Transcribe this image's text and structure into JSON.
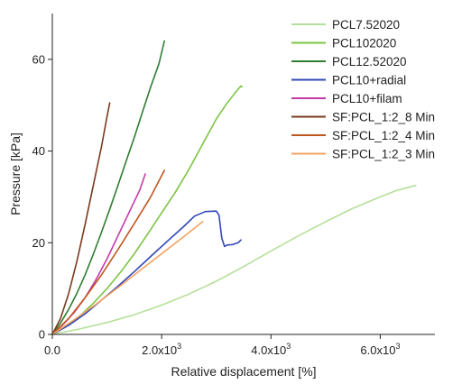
{
  "chart_data": {
    "type": "line",
    "xlabel": "Relative displacement [%]",
    "ylabel": "Pressure [kPa]",
    "xlim": [
      0,
      7000
    ],
    "ylim": [
      0,
      70
    ],
    "x_ticks": [
      0,
      2000,
      4000,
      6000
    ],
    "x_tick_labels": [
      {
        "base": "0.0",
        "exp": ""
      },
      {
        "base": "2.0x10",
        "exp": "3"
      },
      {
        "base": "4.0x10",
        "exp": "3"
      },
      {
        "base": "6.0x10",
        "exp": "3"
      }
    ],
    "y_ticks": [
      0,
      20,
      40,
      60
    ],
    "y_tick_labels": [
      "0",
      "20",
      "40",
      "60"
    ],
    "grid": false,
    "legend_position": "top-right",
    "series": [
      {
        "name": "PCL7.52020",
        "color": "#b5e09a",
        "x": [
          0,
          500,
          1000,
          1500,
          2000,
          2500,
          3000,
          3500,
          4000,
          4500,
          5000,
          5500,
          6000,
          6300,
          6650
        ],
        "y": [
          0,
          1.2,
          2.6,
          4.3,
          6.4,
          8.8,
          11.6,
          14.8,
          18.2,
          21.5,
          24.6,
          27.5,
          30.0,
          31.4,
          32.5
        ]
      },
      {
        "name": "PCL102020",
        "color": "#7cc443",
        "x": [
          0,
          250,
          500,
          750,
          1000,
          1250,
          1500,
          1750,
          2000,
          2250,
          2500,
          2750,
          3000,
          3200,
          3350,
          3450,
          3470
        ],
        "y": [
          0,
          1.8,
          4.0,
          6.8,
          10.0,
          13.6,
          17.6,
          22.0,
          26.5,
          31.0,
          36.0,
          41.5,
          47.0,
          50.5,
          52.8,
          54.2,
          54.0
        ]
      },
      {
        "name": "PCL12.52020",
        "color": "#2e7d32",
        "x": [
          0,
          150,
          300,
          450,
          600,
          750,
          900,
          1050,
          1200,
          1350,
          1500,
          1650,
          1800,
          1950,
          2050
        ],
        "y": [
          0,
          2.5,
          5.5,
          9.0,
          13.0,
          17.5,
          22.3,
          27.3,
          32.5,
          37.8,
          43.0,
          48.5,
          54.0,
          59.0,
          64.0
        ]
      },
      {
        "name": "PCL10+radial",
        "color": "#2f46b4",
        "x": [
          0,
          300,
          600,
          900,
          1200,
          1500,
          1800,
          2100,
          2400,
          2600,
          2800,
          3000,
          3050,
          3100,
          3150,
          3200,
          3300,
          3400,
          3450
        ],
        "y": [
          0,
          2.0,
          4.5,
          7.5,
          10.5,
          13.7,
          17.0,
          20.3,
          23.5,
          25.8,
          26.8,
          26.9,
          26.0,
          21.0,
          19.2,
          19.5,
          19.6,
          20.0,
          20.6
        ]
      },
      {
        "name": "PCL10+filam",
        "color": "#c43aa8",
        "x": [
          0,
          200,
          400,
          600,
          800,
          1000,
          1200,
          1400,
          1600,
          1700
        ],
        "y": [
          0,
          2.2,
          4.8,
          8.0,
          12.0,
          16.5,
          21.5,
          26.5,
          31.5,
          35.0
        ]
      },
      {
        "name": "SF:PCL_1:2_8 Min",
        "color": "#7a3a1e",
        "x": [
          0,
          150,
          300,
          450,
          600,
          750,
          900,
          1000,
          1050
        ],
        "y": [
          0,
          3.5,
          9.0,
          16.0,
          24.0,
          32.5,
          41.0,
          47.5,
          50.5
        ]
      },
      {
        "name": "SF:PCL_1:2_4 Min",
        "color": "#c0561e",
        "x": [
          0,
          300,
          600,
          900,
          1200,
          1500,
          1800,
          2050
        ],
        "y": [
          0,
          3.5,
          8.0,
          13.0,
          18.5,
          24.2,
          30.0,
          35.8
        ]
      },
      {
        "name": "SF:PCL_1:2_3 Min",
        "color": "#f4a261",
        "x": [
          0,
          400,
          800,
          1200,
          1600,
          2000,
          2400,
          2750
        ],
        "y": [
          0,
          3.2,
          6.6,
          10.2,
          13.9,
          17.6,
          21.3,
          24.6
        ]
      }
    ]
  }
}
